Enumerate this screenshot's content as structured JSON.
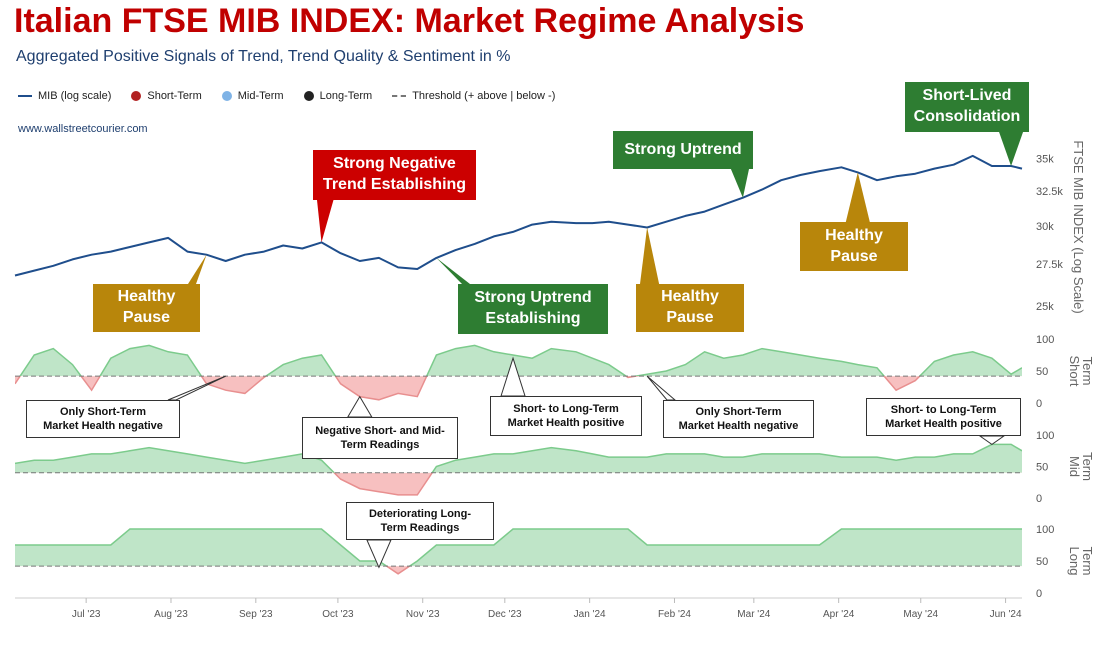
{
  "title": "Italian FTSE MIB INDEX: Market Regime Analysis",
  "subtitle": "Aggregated Positive Signals of Trend, Trend Quality & Sentiment in %",
  "website": "www.wallstreetcourier.com",
  "colors": {
    "index_line": "#1f4e8c",
    "short_term": "#b22222",
    "mid_term": "#7fb3e6",
    "long_term": "#222222",
    "positive_fill": "#bfe5c8",
    "negative_fill": "#f7c0c0",
    "positive_stroke": "#7ccb8c",
    "negative_stroke": "#e88f8f",
    "callout_red": "#cc0000",
    "callout_green": "#2e7d32",
    "callout_gold": "#b8860b"
  },
  "legend": [
    {
      "label": "MIB (log scale)",
      "icon": "line-icon"
    },
    {
      "label": "Short-Term",
      "icon": "dot-icon"
    },
    {
      "label": "Mid-Term",
      "icon": "dot-icon"
    },
    {
      "label": "Long-Term",
      "icon": "dot-icon"
    },
    {
      "label": "Threshold (+ above | below -)",
      "icon": "dash-icon"
    }
  ],
  "chart_data": {
    "type": "line",
    "x_tick_labels": [
      "Jul '23",
      "Aug '23",
      "Sep '23",
      "Oct '23",
      "Nov '23",
      "Dec '23",
      "Jan '24",
      "Feb '24",
      "Mar '24",
      "Apr '24",
      "May '24",
      "Jun '24"
    ],
    "x_range": [
      "2023-06-05",
      "2024-06-07"
    ],
    "price_panel": {
      "ylabel": "FTSE MIB INDEX (Log Scale)",
      "scale": "log",
      "ylim": [
        25000,
        36500
      ],
      "tick_labels": [
        "25k",
        "27.5k",
        "30k",
        "32.5k",
        "35k"
      ],
      "tick_values": [
        25000,
        27500,
        30000,
        32500,
        35000
      ],
      "series": [
        {
          "name": "MIB (log scale)",
          "x": [
            "2023-06-05",
            "2023-06-12",
            "2023-06-19",
            "2023-06-26",
            "2023-07-03",
            "2023-07-10",
            "2023-07-17",
            "2023-07-24",
            "2023-07-31",
            "2023-08-07",
            "2023-08-14",
            "2023-08-21",
            "2023-08-28",
            "2023-09-04",
            "2023-09-11",
            "2023-09-18",
            "2023-09-25",
            "2023-10-02",
            "2023-10-09",
            "2023-10-16",
            "2023-10-23",
            "2023-10-30",
            "2023-11-06",
            "2023-11-13",
            "2023-11-20",
            "2023-11-27",
            "2023-12-04",
            "2023-12-11",
            "2023-12-18",
            "2023-12-27",
            "2024-01-02",
            "2024-01-08",
            "2024-01-15",
            "2024-01-22",
            "2024-01-29",
            "2024-02-05",
            "2024-02-12",
            "2024-02-19",
            "2024-02-26",
            "2024-03-04",
            "2024-03-11",
            "2024-03-18",
            "2024-03-25",
            "2024-04-02",
            "2024-04-08",
            "2024-04-15",
            "2024-04-22",
            "2024-04-29",
            "2024-05-06",
            "2024-05-13",
            "2024-05-20",
            "2024-05-27",
            "2024-06-03",
            "2024-06-07"
          ],
          "y": [
            26800,
            27100,
            27400,
            27800,
            28100,
            28300,
            28600,
            28900,
            29200,
            28300,
            28100,
            27700,
            28100,
            28300,
            28700,
            28500,
            28900,
            28200,
            27700,
            27900,
            27300,
            27200,
            27900,
            28400,
            28800,
            29300,
            29600,
            30100,
            30300,
            30200,
            30200,
            30300,
            30100,
            29900,
            30300,
            30700,
            31000,
            31500,
            32000,
            32600,
            33300,
            33700,
            34000,
            34300,
            33900,
            33300,
            33600,
            33800,
            34200,
            34500,
            35200,
            34400,
            34400,
            34200
          ]
        }
      ]
    },
    "short_term_panel": {
      "ylabel": "Short Term",
      "ylim": [
        0,
        100
      ],
      "tick_labels": [
        "0",
        "50",
        "100"
      ],
      "threshold": 42,
      "series": [
        {
          "name": "Short-Term",
          "x": [
            "2023-06-05",
            "2023-06-12",
            "2023-06-19",
            "2023-06-26",
            "2023-07-03",
            "2023-07-10",
            "2023-07-17",
            "2023-07-24",
            "2023-07-31",
            "2023-08-07",
            "2023-08-14",
            "2023-08-21",
            "2023-08-28",
            "2023-09-04",
            "2023-09-11",
            "2023-09-18",
            "2023-09-25",
            "2023-10-02",
            "2023-10-09",
            "2023-10-16",
            "2023-10-23",
            "2023-10-30",
            "2023-11-06",
            "2023-11-13",
            "2023-11-20",
            "2023-11-27",
            "2023-12-04",
            "2023-12-11",
            "2023-12-18",
            "2023-12-27",
            "2024-01-02",
            "2024-01-08",
            "2024-01-15",
            "2024-01-22",
            "2024-01-29",
            "2024-02-05",
            "2024-02-12",
            "2024-02-19",
            "2024-02-26",
            "2024-03-04",
            "2024-03-11",
            "2024-03-18",
            "2024-03-25",
            "2024-04-02",
            "2024-04-08",
            "2024-04-15",
            "2024-04-22",
            "2024-04-29",
            "2024-05-06",
            "2024-05-13",
            "2024-05-20",
            "2024-05-27",
            "2024-06-03",
            "2024-06-07"
          ],
          "y": [
            30,
            75,
            85,
            60,
            20,
            70,
            85,
            90,
            80,
            75,
            30,
            20,
            15,
            40,
            60,
            70,
            75,
            30,
            10,
            5,
            15,
            10,
            75,
            85,
            90,
            80,
            75,
            70,
            85,
            80,
            70,
            60,
            40,
            45,
            50,
            60,
            80,
            70,
            75,
            85,
            80,
            75,
            70,
            65,
            60,
            55,
            20,
            35,
            65,
            75,
            80,
            70,
            45,
            55
          ]
        }
      ]
    },
    "mid_term_panel": {
      "ylabel": "Mid Term",
      "ylim": [
        0,
        100
      ],
      "tick_labels": [
        "0",
        "50",
        "100"
      ],
      "threshold": 40,
      "series": [
        {
          "name": "Mid-Term",
          "x": [
            "2023-06-05",
            "2023-06-12",
            "2023-06-19",
            "2023-06-26",
            "2023-07-03",
            "2023-07-10",
            "2023-07-17",
            "2023-07-24",
            "2023-07-31",
            "2023-08-07",
            "2023-08-14",
            "2023-08-21",
            "2023-08-28",
            "2023-09-04",
            "2023-09-11",
            "2023-09-18",
            "2023-09-25",
            "2023-10-02",
            "2023-10-09",
            "2023-10-16",
            "2023-10-23",
            "2023-10-30",
            "2023-11-06",
            "2023-11-13",
            "2023-11-20",
            "2023-11-27",
            "2023-12-04",
            "2023-12-11",
            "2023-12-18",
            "2023-12-27",
            "2024-01-02",
            "2024-01-08",
            "2024-01-15",
            "2024-01-22",
            "2024-01-29",
            "2024-02-05",
            "2024-02-12",
            "2024-02-19",
            "2024-02-26",
            "2024-03-04",
            "2024-03-11",
            "2024-03-18",
            "2024-03-25",
            "2024-04-02",
            "2024-04-08",
            "2024-04-15",
            "2024-04-22",
            "2024-04-29",
            "2024-05-06",
            "2024-05-13",
            "2024-05-20",
            "2024-05-27",
            "2024-06-03",
            "2024-06-07"
          ],
          "y": [
            55,
            60,
            60,
            65,
            70,
            70,
            75,
            80,
            75,
            70,
            65,
            60,
            55,
            60,
            65,
            70,
            60,
            30,
            15,
            10,
            5,
            5,
            50,
            60,
            65,
            70,
            70,
            75,
            80,
            75,
            70,
            65,
            65,
            65,
            70,
            70,
            70,
            65,
            65,
            70,
            70,
            70,
            70,
            65,
            65,
            65,
            60,
            65,
            65,
            70,
            70,
            85,
            85,
            75
          ]
        }
      ]
    },
    "long_term_panel": {
      "ylabel": "Long Term",
      "ylim": [
        0,
        100
      ],
      "tick_labels": [
        "0",
        "50",
        "100"
      ],
      "threshold": 42,
      "series": [
        {
          "name": "Long-Term",
          "x": [
            "2023-06-05",
            "2023-06-12",
            "2023-06-19",
            "2023-06-26",
            "2023-07-03",
            "2023-07-10",
            "2023-07-17",
            "2023-07-24",
            "2023-07-31",
            "2023-08-07",
            "2023-08-14",
            "2023-08-21",
            "2023-08-28",
            "2023-09-04",
            "2023-09-11",
            "2023-09-18",
            "2023-09-25",
            "2023-10-02",
            "2023-10-09",
            "2023-10-16",
            "2023-10-23",
            "2023-10-30",
            "2023-11-06",
            "2023-11-13",
            "2023-11-20",
            "2023-11-27",
            "2023-12-04",
            "2023-12-11",
            "2023-12-18",
            "2023-12-27",
            "2024-01-02",
            "2024-01-08",
            "2024-01-15",
            "2024-01-22",
            "2024-01-29",
            "2024-02-05",
            "2024-02-12",
            "2024-02-19",
            "2024-02-26",
            "2024-03-04",
            "2024-03-11",
            "2024-03-18",
            "2024-03-25",
            "2024-04-02",
            "2024-04-08",
            "2024-04-15",
            "2024-04-22",
            "2024-04-29",
            "2024-05-06",
            "2024-05-13",
            "2024-05-20",
            "2024-05-27",
            "2024-06-03",
            "2024-06-07"
          ],
          "y": [
            75,
            75,
            75,
            75,
            75,
            75,
            100,
            100,
            100,
            100,
            100,
            100,
            100,
            100,
            100,
            100,
            100,
            75,
            50,
            50,
            30,
            50,
            75,
            75,
            75,
            75,
            100,
            100,
            100,
            100,
            100,
            100,
            100,
            75,
            75,
            75,
            75,
            75,
            75,
            75,
            75,
            75,
            75,
            100,
            100,
            100,
            100,
            100,
            100,
            100,
            100,
            100,
            100,
            100
          ]
        }
      ]
    }
  },
  "callouts": [
    {
      "id": "healthy-pause-1",
      "lines": [
        "Healthy",
        "Pause"
      ],
      "style": "gold",
      "pointer_date": "2023-08-14",
      "pointer_value": 28100
    },
    {
      "id": "strong-negative",
      "lines": [
        "Strong Negative",
        "Trend Establishing"
      ],
      "style": "red",
      "pointer_date": "2023-09-25",
      "pointer_value": 28900
    },
    {
      "id": "strong-uptrend-est",
      "lines": [
        "Strong Uptrend",
        "Establishing"
      ],
      "style": "green",
      "pointer_date": "2023-11-06",
      "pointer_value": 27900
    },
    {
      "id": "strong-uptrend",
      "lines": [
        "Strong Uptrend"
      ],
      "style": "green",
      "pointer_date": "2024-02-26",
      "pointer_value": 32000
    },
    {
      "id": "healthy-pause-2",
      "lines": [
        "Healthy",
        "Pause"
      ],
      "style": "gold",
      "pointer_date": "2024-01-22",
      "pointer_value": 29900
    },
    {
      "id": "healthy-pause-3",
      "lines": [
        "Healthy",
        "Pause"
      ],
      "style": "gold",
      "pointer_date": "2024-04-08",
      "pointer_value": 33900
    },
    {
      "id": "short-lived",
      "lines": [
        "Short-Lived",
        "Consolidation"
      ],
      "style": "green",
      "pointer_date": "2024-06-03",
      "pointer_value": 34400
    }
  ],
  "notes": [
    {
      "id": "note-short-negative-1",
      "lines": [
        "Only Short-Term",
        "Market Health negative"
      ],
      "pointer_date": "2023-08-21",
      "pointer_value": 42
    },
    {
      "id": "note-neg-short-mid",
      "lines": [
        "Negative Short- and Mid-",
        "Term Readings"
      ],
      "pointer_date": "2023-10-09",
      "pointer_value": 10
    },
    {
      "id": "note-short-long-pos-1",
      "lines": [
        "Short- to Long-Term",
        "Market Health positive"
      ],
      "pointer_date": "2023-12-04",
      "pointer_value": 70
    },
    {
      "id": "note-short-negative-2",
      "lines": [
        "Only Short-Term",
        "Market Health negative"
      ],
      "pointer_date": "2024-01-22",
      "pointer_value": 42
    },
    {
      "id": "note-short-long-pos-2",
      "lines": [
        "Short- to Long-Term",
        "Market Health positive"
      ],
      "pointer_date": "2024-05-27",
      "pointer_value": 85
    },
    {
      "id": "note-deteriorating",
      "lines": [
        "Deteriorating Long-",
        "Term Readings"
      ],
      "pointer_date": "2023-10-16",
      "pointer_value": 40
    }
  ]
}
